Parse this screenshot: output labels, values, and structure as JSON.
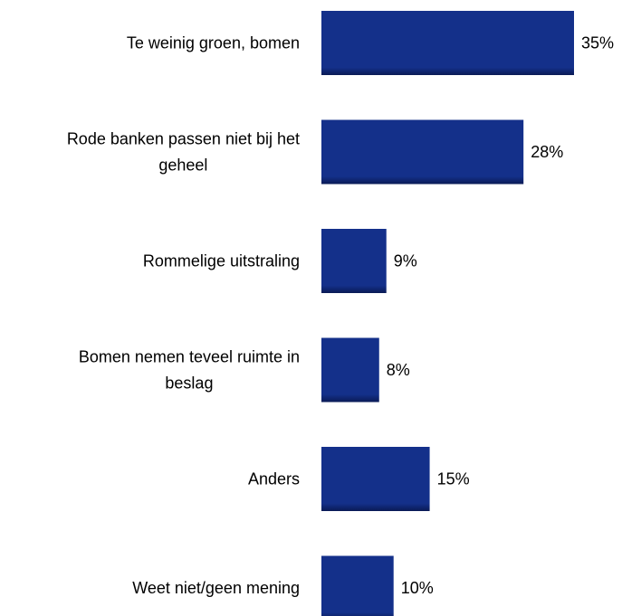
{
  "chart_data": {
    "type": "bar",
    "orientation": "horizontal",
    "categories": [
      [
        "Te weinig groen, bomen"
      ],
      [
        "Rode banken passen niet bij het",
        "geheel"
      ],
      [
        "Rommelige uitstraling"
      ],
      [
        "Bomen nemen teveel ruimte in",
        "beslag"
      ],
      [
        "Anders"
      ],
      [
        "Weet niet/geen mening"
      ]
    ],
    "values": [
      35,
      28,
      9,
      8,
      15,
      10
    ],
    "value_labels": [
      "35%",
      "28%",
      "9%",
      "8%",
      "15%",
      "10%"
    ],
    "unit": "%",
    "xlim": [
      0,
      35
    ],
    "grid": false,
    "legend": "none",
    "bar_color": "#14308A",
    "bar_shadow_color": "#0A1A55"
  }
}
